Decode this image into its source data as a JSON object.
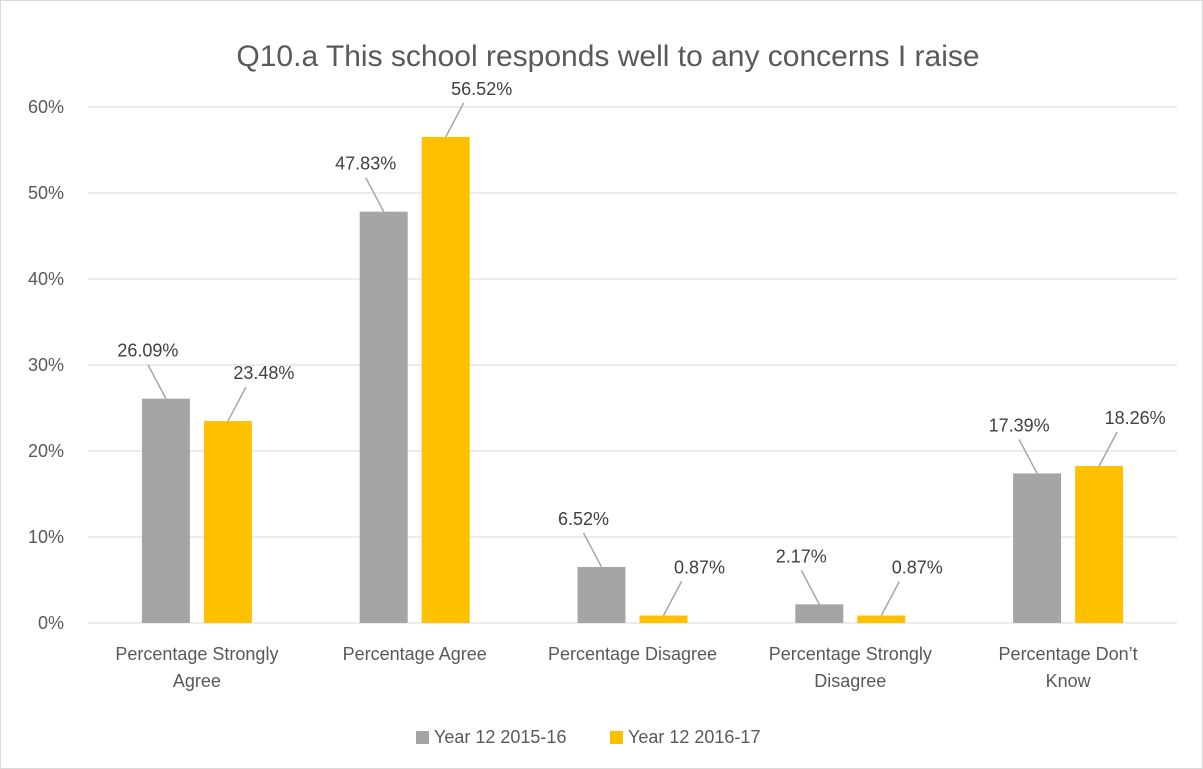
{
  "chart_data": {
    "type": "bar",
    "title": "Q10.a This school responds well to any concerns I raise",
    "xlabel": "",
    "ylabel": "",
    "ylim": [
      0,
      60
    ],
    "y_ticks": [
      "0%",
      "10%",
      "20%",
      "30%",
      "40%",
      "50%",
      "60%"
    ],
    "grid": true,
    "legend_position": "bottom",
    "categories": [
      [
        "Percentage Strongly",
        "Agree"
      ],
      [
        "Percentage Agree"
      ],
      [
        "Percentage Disagree"
      ],
      [
        "Percentage Strongly",
        "Disagree"
      ],
      [
        "Percentage Don’t",
        "Know"
      ]
    ],
    "series": [
      {
        "name": "Year 12 2015-16",
        "color": "#a5a5a5",
        "values": [
          26.09,
          47.83,
          6.52,
          2.17,
          17.39
        ],
        "labels": [
          "26.09%",
          "47.83%",
          "6.52%",
          "2.17%",
          "17.39%"
        ]
      },
      {
        "name": "Year 12 2016-17",
        "color": "#ffc000",
        "values": [
          23.48,
          56.52,
          0.87,
          0.87,
          18.26
        ],
        "labels": [
          "23.48%",
          "56.52%",
          "0.87%",
          "0.87%",
          "18.26%"
        ]
      }
    ]
  }
}
